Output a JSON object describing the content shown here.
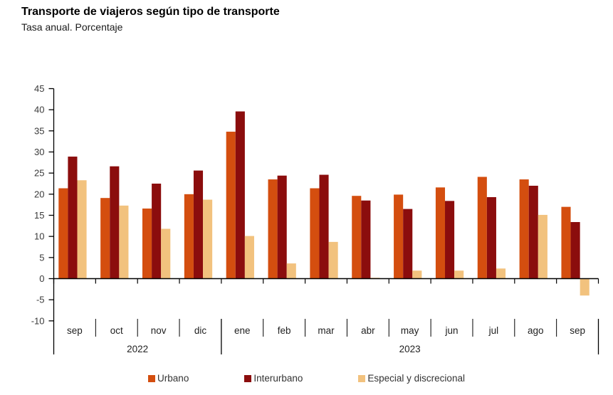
{
  "header": {
    "title": "Transporte de viajeros según tipo de transporte",
    "subtitle": "Tasa anual. Porcentaje"
  },
  "chart_data": {
    "type": "bar",
    "title": "Transporte de viajeros según tipo de transporte",
    "subtitle": "Tasa anual. Porcentaje",
    "categories": [
      "sep",
      "oct",
      "nov",
      "dic",
      "ene",
      "feb",
      "mar",
      "abr",
      "may",
      "jun",
      "jul",
      "ago",
      "sep"
    ],
    "year_groups": [
      {
        "label": "2022",
        "from": 0,
        "to": 3
      },
      {
        "label": "2023",
        "from": 4,
        "to": 12
      }
    ],
    "series": [
      {
        "name": "Urbano",
        "color": "#D44E0F",
        "values": [
          21.4,
          19.1,
          16.6,
          20.0,
          34.8,
          23.5,
          21.4,
          19.6,
          19.9,
          21.6,
          24.1,
          23.5,
          17.0
        ]
      },
      {
        "name": "Interurbano",
        "color": "#8B0D0D",
        "values": [
          28.9,
          26.6,
          22.5,
          25.6,
          39.6,
          24.4,
          24.6,
          18.5,
          16.5,
          18.4,
          19.3,
          22.0,
          13.4
        ]
      },
      {
        "name": "Especial y discrecional",
        "color": "#F2C27E",
        "values": [
          23.3,
          17.3,
          11.8,
          18.7,
          10.1,
          3.6,
          8.7,
          0.2,
          1.9,
          1.9,
          2.4,
          15.1,
          -4.0
        ]
      }
    ],
    "ylim": [
      -10,
      45
    ],
    "ytick_step": 5,
    "yticks": [
      45,
      40,
      35,
      30,
      25,
      20,
      15,
      10,
      5,
      0,
      -5,
      -10
    ],
    "xlabel": "",
    "ylabel": "",
    "grid": false,
    "legend_position": "bottom",
    "axis_color": "#000000",
    "tick_label_color": "#3a3a3a"
  }
}
